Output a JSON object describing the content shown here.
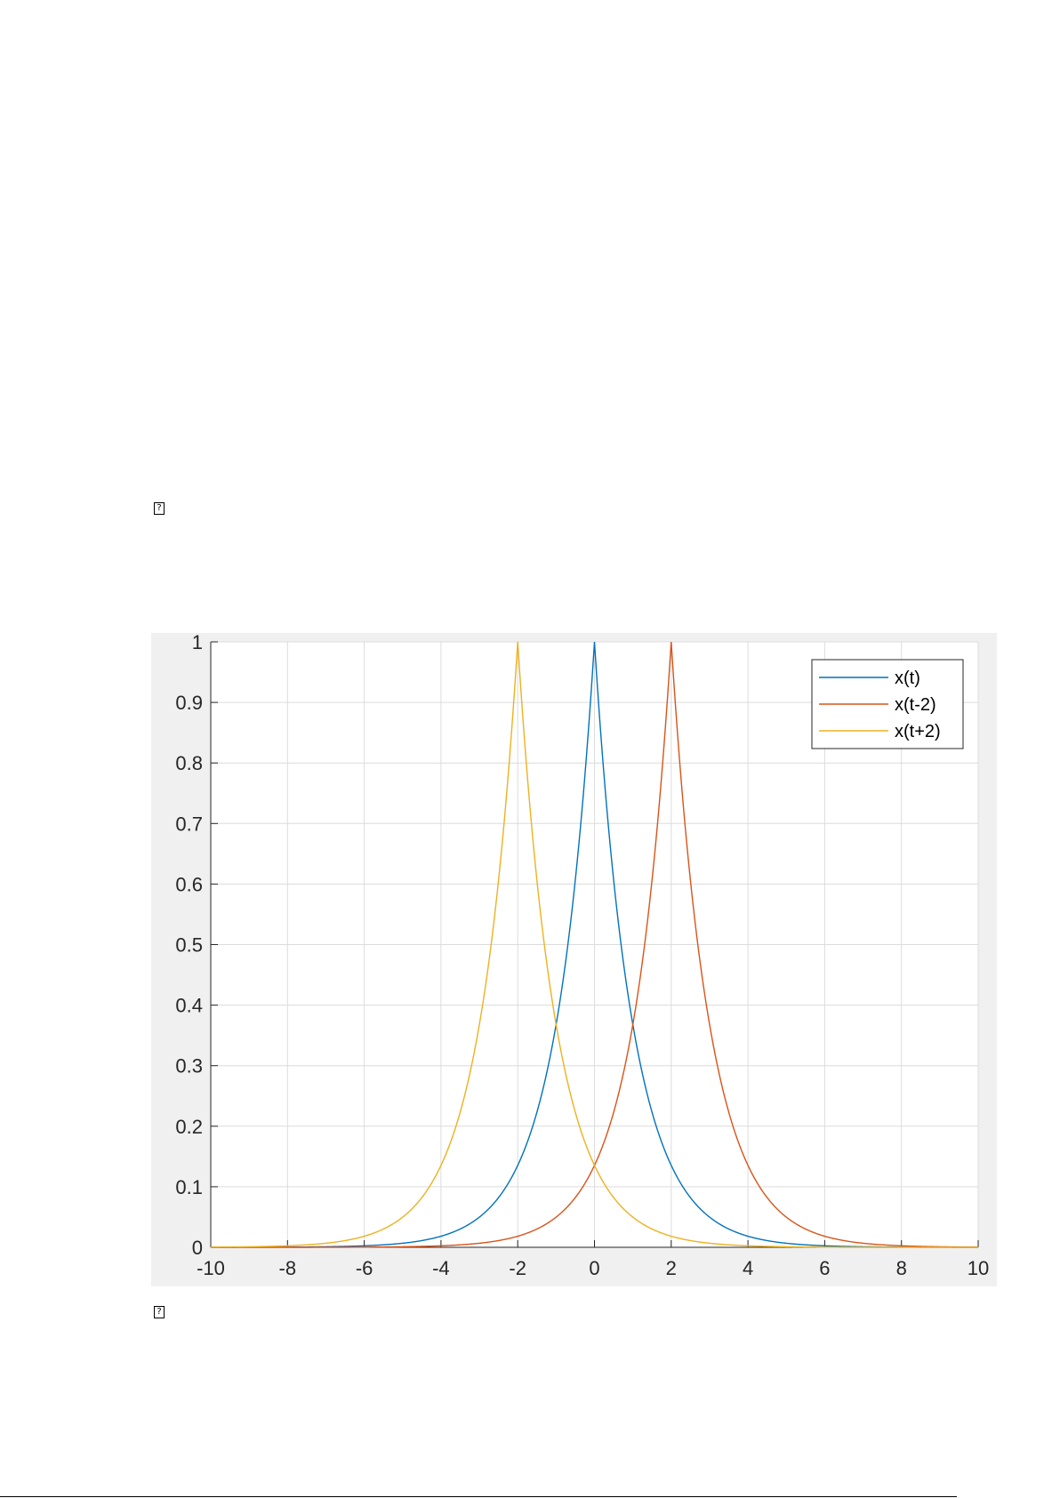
{
  "page": {
    "placeholder_glyph_top": "?",
    "placeholder_glyph_bottom": "?"
  },
  "chart_data": {
    "type": "line",
    "title": "",
    "xlabel": "",
    "ylabel": "",
    "xlim": [
      -10,
      10
    ],
    "ylim": [
      0,
      1
    ],
    "xticks": [
      "-10",
      "-8",
      "-6",
      "-4",
      "-2",
      "0",
      "2",
      "4",
      "6",
      "8",
      "10"
    ],
    "yticks": [
      "0",
      "0.1",
      "0.2",
      "0.3",
      "0.4",
      "0.5",
      "0.6",
      "0.7",
      "0.8",
      "0.9",
      "1"
    ],
    "grid": true,
    "legend_position": "top-right",
    "x": [
      -10,
      -9,
      -8,
      -7,
      -6,
      -5,
      -4,
      -3,
      -2.5,
      -2,
      -1.5,
      -1,
      -0.5,
      0,
      0.5,
      1,
      1.5,
      2,
      2.5,
      3,
      4,
      5,
      6,
      7,
      8,
      9,
      10
    ],
    "series": [
      {
        "name": "x(t)",
        "color": "#0072bd",
        "values": [
          0.0,
          0.0001,
          0.0003,
          0.0009,
          0.0025,
          0.0067,
          0.0183,
          0.0498,
          0.0821,
          0.1353,
          0.2231,
          0.3679,
          0.6065,
          1.0,
          0.6065,
          0.3679,
          0.2231,
          0.1353,
          0.0821,
          0.0498,
          0.0183,
          0.0067,
          0.0025,
          0.0009,
          0.0003,
          0.0001,
          0.0
        ]
      },
      {
        "name": "x(t-2)",
        "color": "#d95319",
        "values": [
          0.0,
          0.0,
          0.0,
          0.0001,
          0.0003,
          0.0009,
          0.0025,
          0.0067,
          0.0111,
          0.0183,
          0.0302,
          0.0498,
          0.0821,
          0.1353,
          0.2231,
          0.3679,
          0.6065,
          1.0,
          0.6065,
          0.3679,
          0.1353,
          0.0498,
          0.0183,
          0.0067,
          0.0025,
          0.0009,
          0.0003
        ]
      },
      {
        "name": "x(t+2)",
        "color": "#edb120",
        "values": [
          0.0003,
          0.0009,
          0.0025,
          0.0067,
          0.0183,
          0.0498,
          0.1353,
          0.3679,
          0.6065,
          1.0,
          0.6065,
          0.3679,
          0.2231,
          0.1353,
          0.0821,
          0.0498,
          0.0302,
          0.0183,
          0.0111,
          0.0067,
          0.0025,
          0.0009,
          0.0003,
          0.0001,
          0.0,
          0.0,
          0.0
        ]
      }
    ]
  }
}
